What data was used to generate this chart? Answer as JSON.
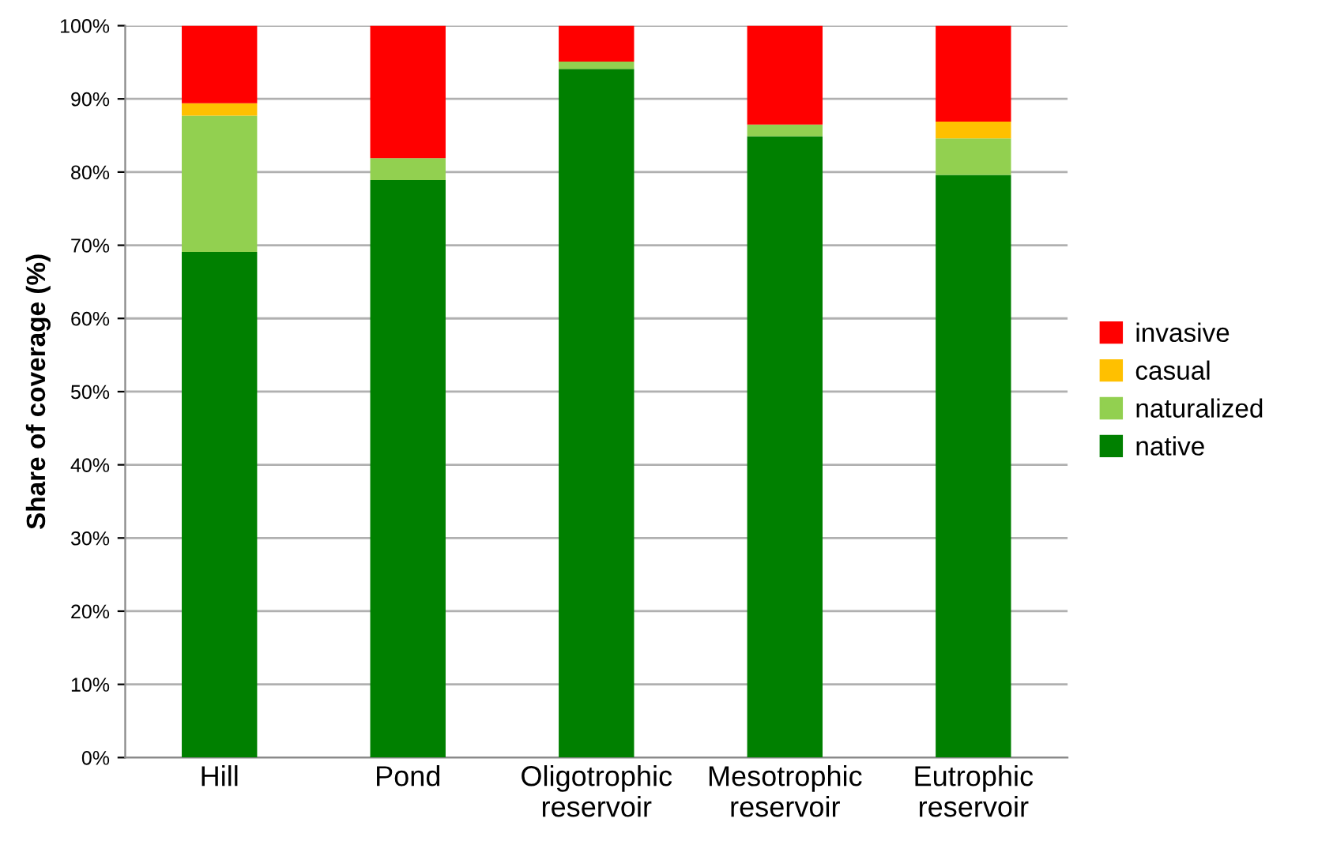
{
  "chart_data": {
    "type": "bar",
    "stacked": true,
    "ylabel": "Share of coverage (%)",
    "categories": [
      "Hill",
      "Pond",
      "Oligotrophic\nreservoir",
      "Mesotrophic\nreservoir",
      "Eutrophic\nreservoir"
    ],
    "series": [
      {
        "name": "native",
        "color": "#008000",
        "values": [
          69.1,
          78.9,
          94.1,
          84.9,
          79.6
        ]
      },
      {
        "name": "naturalized",
        "color": "#92d050",
        "values": [
          18.6,
          3.0,
          1.0,
          1.6,
          5.0
        ]
      },
      {
        "name": "casual",
        "color": "#ffc000",
        "values": [
          1.7,
          0,
          0,
          0,
          2.3
        ]
      },
      {
        "name": "invasive",
        "color": "#ff0000",
        "values": [
          10.6,
          18.1,
          4.9,
          13.5,
          13.1
        ]
      }
    ],
    "ylim": [
      0,
      100
    ],
    "yticks": [
      {
        "value": 0,
        "label": "0%"
      },
      {
        "value": 10,
        "label": "10%"
      },
      {
        "value": 20,
        "label": "20%"
      },
      {
        "value": 30,
        "label": "30%"
      },
      {
        "value": 40,
        "label": "40%"
      },
      {
        "value": 50,
        "label": "50%"
      },
      {
        "value": 60,
        "label": "60%"
      },
      {
        "value": 70,
        "label": "70%"
      },
      {
        "value": 80,
        "label": "80%"
      },
      {
        "value": 90,
        "label": "90%"
      },
      {
        "value": 100,
        "label": "100%"
      }
    ],
    "grid": "y",
    "legend": "right"
  }
}
